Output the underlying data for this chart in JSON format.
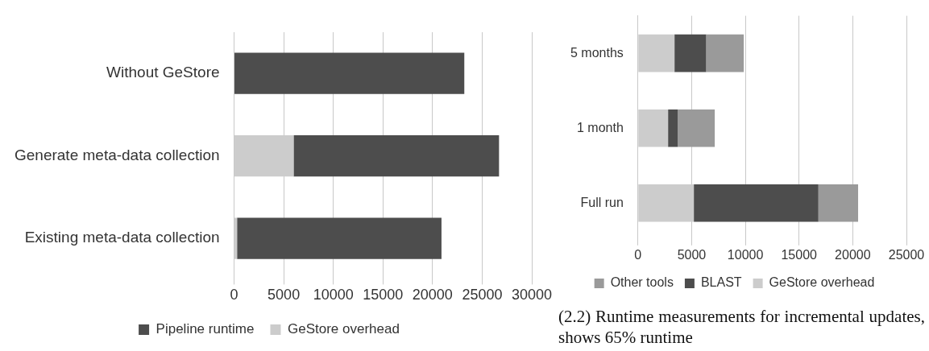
{
  "chart_data": [
    {
      "type": "bar",
      "orientation": "horizontal",
      "stacked": true,
      "categories": [
        "Without GeStore",
        "Generate meta-data collection",
        "Existing meta-data collection"
      ],
      "series": [
        {
          "name": "GeStore overhead",
          "color": "#cccccc",
          "values": [
            0,
            6000,
            300
          ]
        },
        {
          "name": "Pipeline runtime",
          "color": "#4d4d4d",
          "values": [
            23200,
            20700,
            20600
          ]
        }
      ],
      "xlim": [
        0,
        30000
      ],
      "xticks": [
        0,
        5000,
        10000,
        15000,
        20000,
        25000,
        30000
      ],
      "grid": "x",
      "legend": "bottom"
    },
    {
      "type": "bar",
      "orientation": "horizontal",
      "stacked": true,
      "categories": [
        "5 months",
        "1 month",
        "Full run"
      ],
      "series": [
        {
          "name": "GeStore overhead",
          "color": "#cccccc",
          "values": [
            3400,
            2800,
            5200
          ]
        },
        {
          "name": "BLAST",
          "color": "#4d4d4d",
          "values": [
            2950,
            900,
            11600
          ]
        },
        {
          "name": "Other tools",
          "color": "#9a9a9a",
          "values": [
            3500,
            3450,
            3700
          ]
        }
      ],
      "xlim": [
        0,
        25000
      ],
      "xticks": [
        0,
        5000,
        10000,
        15000,
        20000,
        25000
      ],
      "grid": "x",
      "legend": "bottom",
      "annotations": [
        "(2.2) Runtime measurements for incremental updates, shows 65% runtime"
      ]
    }
  ]
}
